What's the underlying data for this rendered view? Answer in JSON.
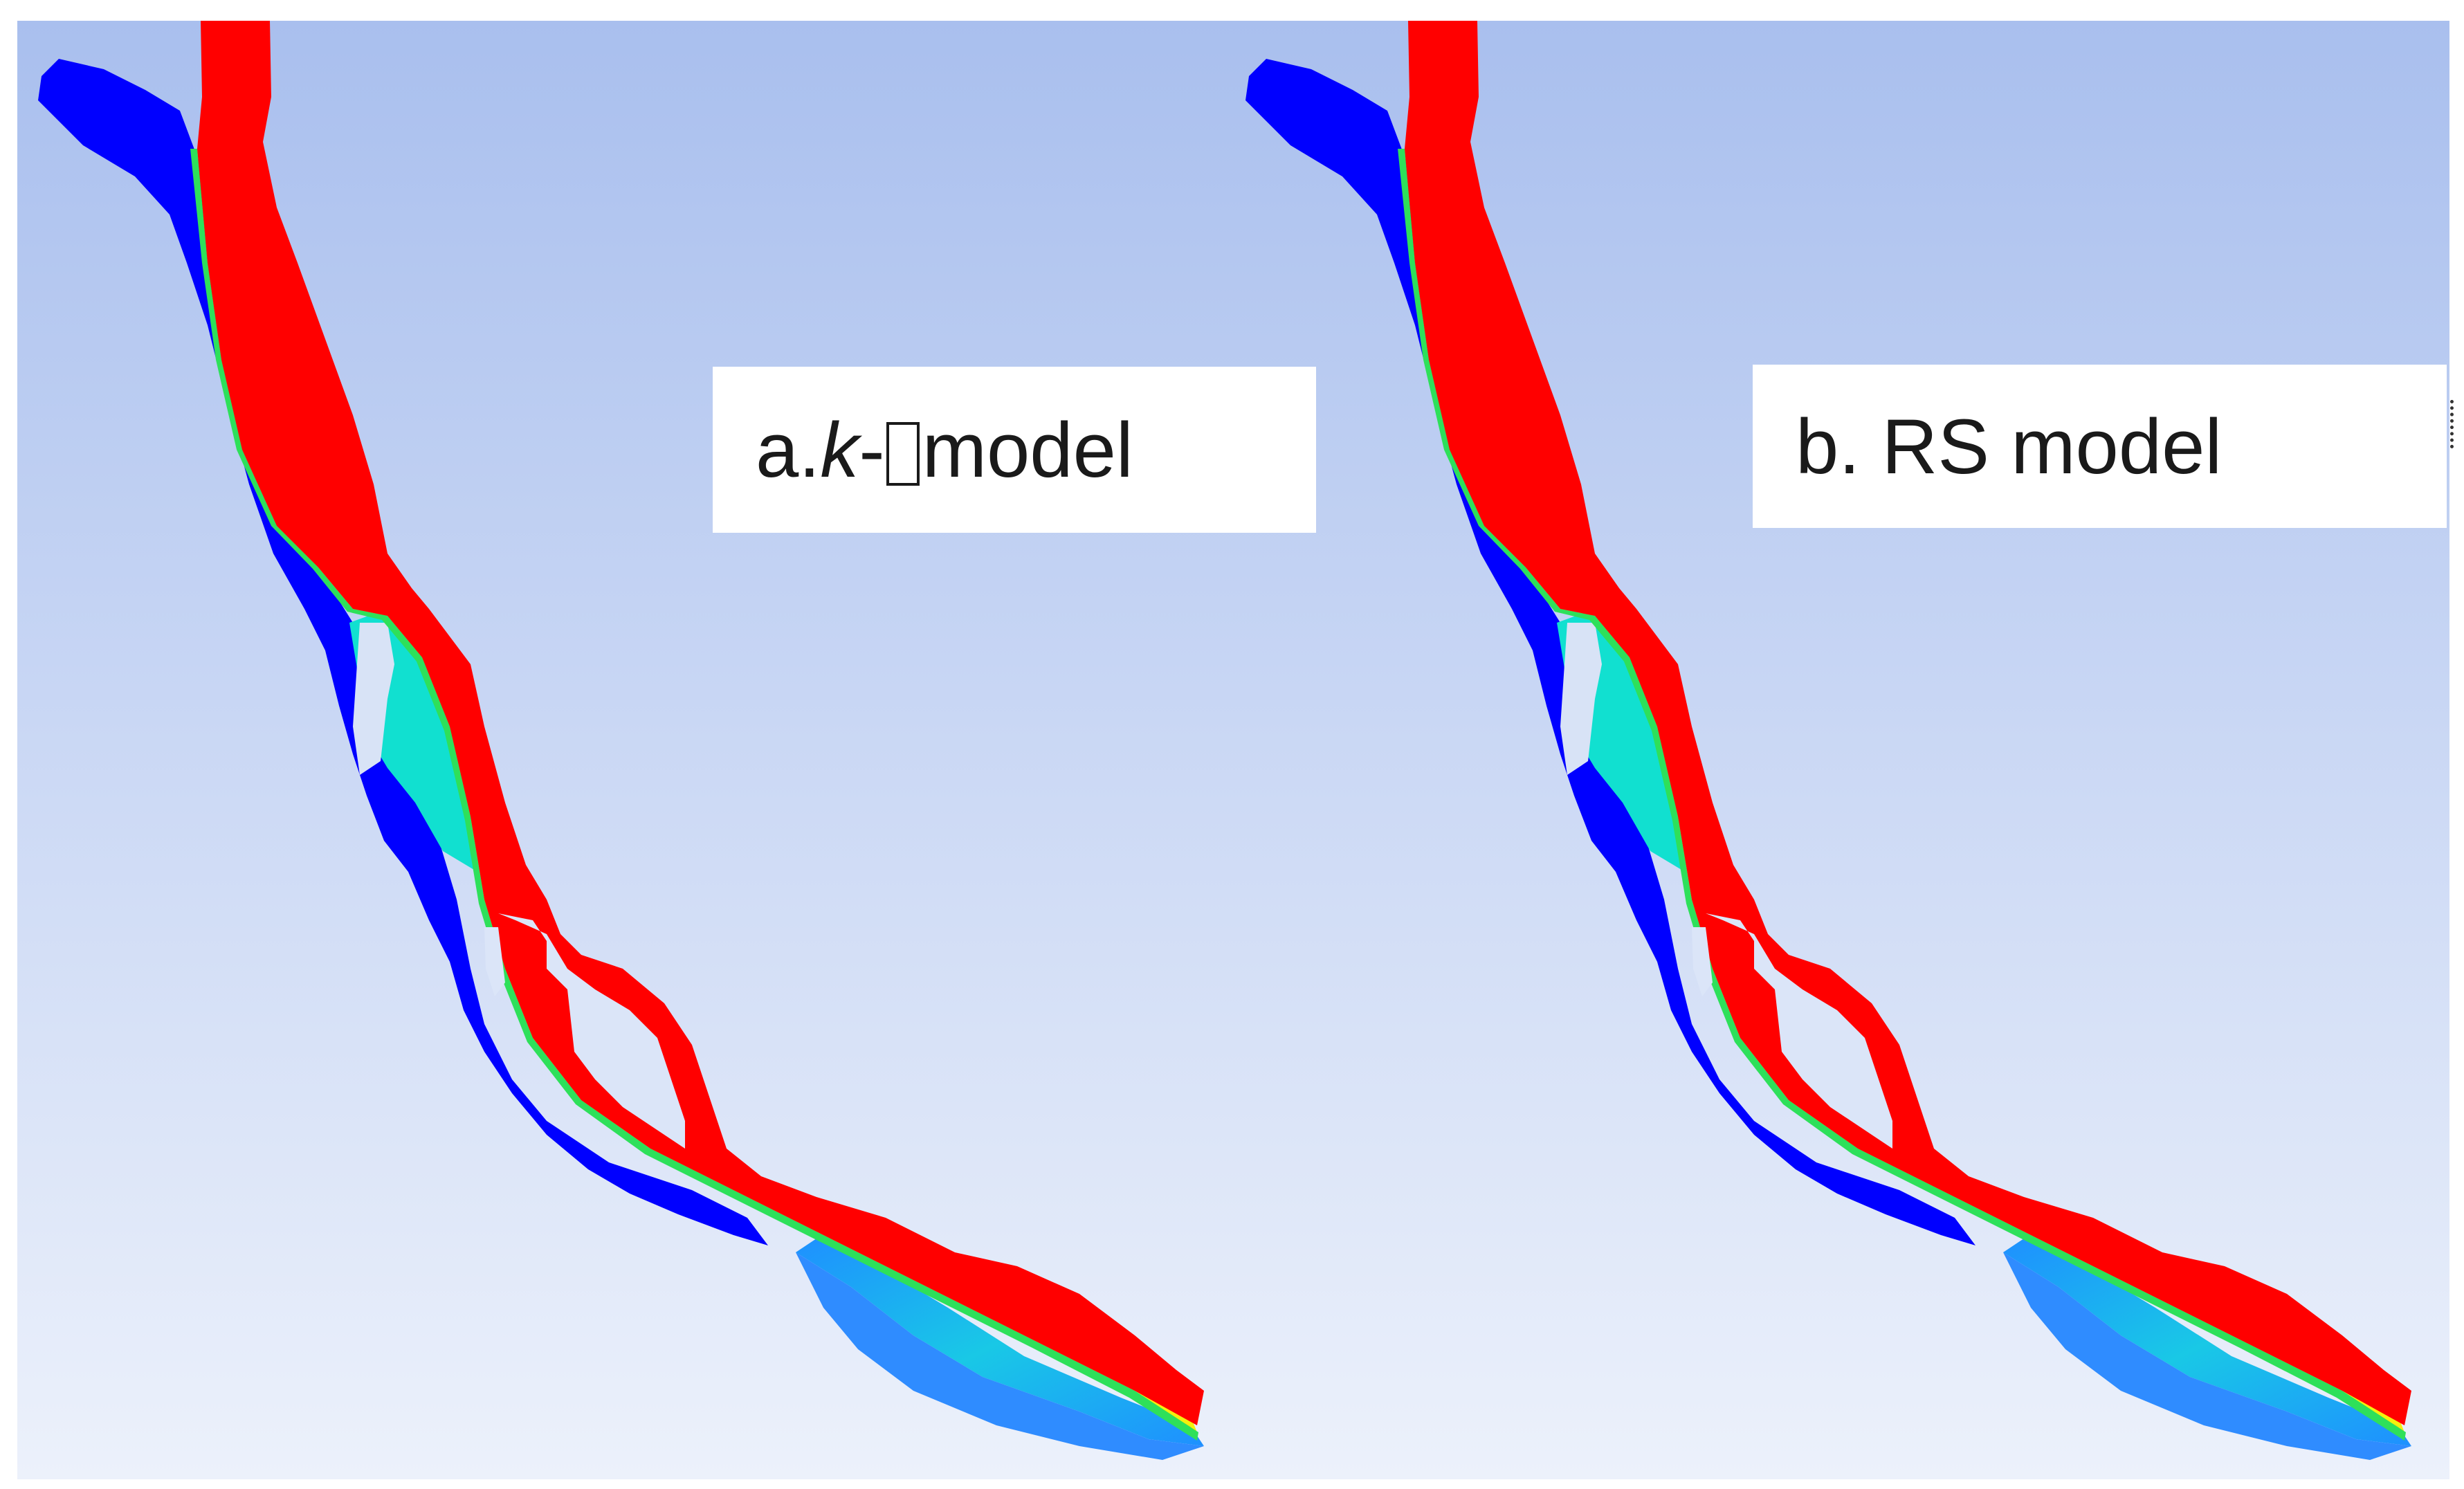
{
  "panels": [
    {
      "id": "a",
      "label_prefix": "a. ",
      "label_italic": "k",
      "label_dash": "-",
      "label_symbol": "ε",
      "label_suffix": "model"
    },
    {
      "id": "b",
      "label": "b. RS model"
    }
  ],
  "colors": {
    "background_top": "#a9bfee",
    "background_bottom": "#ecf1fb",
    "fast_flow": "#ff0000",
    "slow_flow": "#0000ff",
    "mid_flow_cyan": "#11e0d0",
    "mid_flow_lightblue": "#1e90ff",
    "transition_yellow": "#f5ef00",
    "transition_green": "#2ee05a"
  },
  "icons": [
    "velocity-contour-plot",
    "missing-glyph-box"
  ]
}
